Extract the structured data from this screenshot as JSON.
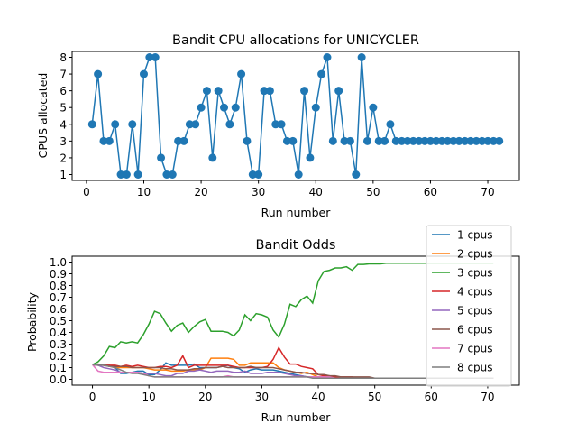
{
  "chart_data": [
    {
      "type": "line",
      "title": "Bandit CPU allocations for UNICYCLER",
      "xlabel": "Run number",
      "ylabel": "CPUS allocated",
      "xlim": [
        -2.5,
        75.5
      ],
      "ylim": [
        0.65,
        8.35
      ],
      "xticks": [
        0,
        10,
        20,
        30,
        40,
        50,
        60,
        70
      ],
      "yticks": [
        1,
        2,
        3,
        4,
        5,
        6,
        7,
        8
      ],
      "marker": "circle",
      "color": "#1f77b4",
      "x": [
        1,
        2,
        3,
        4,
        5,
        6,
        7,
        8,
        9,
        10,
        11,
        12,
        13,
        14,
        15,
        16,
        17,
        18,
        19,
        20,
        21,
        22,
        23,
        24,
        25,
        26,
        27,
        28,
        29,
        30,
        31,
        32,
        33,
        34,
        35,
        36,
        37,
        38,
        39,
        40,
        41,
        42,
        43,
        44,
        45,
        46,
        47,
        48,
        49,
        50,
        51,
        52,
        53,
        54,
        55,
        56,
        57,
        58,
        59,
        60,
        61,
        62,
        63,
        64,
        65,
        66,
        67,
        68,
        69,
        70,
        71,
        72
      ],
      "y": [
        4,
        7,
        3,
        3,
        4,
        1,
        1,
        4,
        1,
        7,
        8,
        8,
        2,
        1,
        1,
        3,
        3,
        4,
        4,
        5,
        6,
        2,
        6,
        5,
        4,
        5,
        7,
        3,
        1,
        1,
        6,
        6,
        4,
        4,
        3,
        3,
        1,
        6,
        2,
        5,
        7,
        8,
        3,
        6,
        3,
        3,
        1,
        8,
        3,
        5,
        3,
        3,
        4,
        3,
        3,
        3,
        3,
        3,
        3,
        3,
        3,
        3,
        3,
        3,
        3,
        3,
        3,
        3,
        3,
        3,
        3,
        3
      ]
    },
    {
      "type": "line",
      "title": "Bandit Odds",
      "xlabel": "Run number",
      "ylabel": "Probability",
      "xlim": [
        -3.6,
        75.6
      ],
      "ylim": [
        -0.05,
        1.05
      ],
      "xticks": [
        0,
        10,
        20,
        30,
        40,
        50,
        60,
        70
      ],
      "yticks": [
        0.0,
        0.1,
        0.2,
        0.3,
        0.4,
        0.5,
        0.6,
        0.7,
        0.8,
        0.9,
        1.0
      ],
      "ytick_labels": [
        "0.0",
        "0.1",
        "0.2",
        "0.3",
        "0.4",
        "0.5",
        "0.6",
        "0.7",
        "0.8",
        "0.9",
        "1.0"
      ],
      "legend_placement": "top-right",
      "x_start": 0,
      "x_end": 71,
      "series": [
        {
          "name": "1 cpus",
          "color": "#1f77b4",
          "values": [
            0.125,
            0.13,
            0.12,
            0.12,
            0.1,
            0.05,
            0.05,
            0.06,
            0.07,
            0.07,
            0.04,
            0.04,
            0.08,
            0.14,
            0.12,
            0.12,
            0.12,
            0.12,
            0.13,
            0.1,
            0.1,
            0.1,
            0.1,
            0.11,
            0.12,
            0.1,
            0.09,
            0.06,
            0.08,
            0.09,
            0.08,
            0.08,
            0.08,
            0.07,
            0.06,
            0.05,
            0.04,
            0.03,
            0.02,
            0.02,
            0.01,
            0.01,
            0.01,
            0.01,
            0.01,
            0.01,
            0.01,
            0.01,
            0.01,
            0.01,
            0.01,
            0.01,
            0.01,
            0.01,
            0.01,
            0.01,
            0.01,
            0.01,
            0.01,
            0.01,
            0.01,
            0.01,
            0.01,
            0.01,
            0.01,
            0.01,
            0.01,
            0.01,
            0.01,
            0.01,
            0.01,
            0.01
          ]
        },
        {
          "name": "2 cpus",
          "color": "#ff7f0e",
          "values": [
            0.125,
            0.13,
            0.12,
            0.11,
            0.1,
            0.1,
            0.1,
            0.1,
            0.1,
            0.1,
            0.09,
            0.08,
            0.08,
            0.08,
            0.07,
            0.07,
            0.07,
            0.08,
            0.08,
            0.08,
            0.1,
            0.18,
            0.18,
            0.18,
            0.18,
            0.17,
            0.12,
            0.12,
            0.14,
            0.14,
            0.14,
            0.14,
            0.14,
            0.1,
            0.08,
            0.07,
            0.06,
            0.05,
            0.06,
            0.04,
            0.02,
            0.02,
            0.02,
            0.01,
            0.01,
            0.01,
            0.01,
            0.01,
            0.01,
            0.01,
            0.01,
            0.01,
            0.01,
            0.01,
            0.01,
            0.01,
            0.01,
            0.01,
            0.01,
            0.01,
            0.01,
            0.01,
            0.01,
            0.01,
            0.01,
            0.01,
            0.01,
            0.01,
            0.01,
            0.01,
            0.01,
            0.01
          ]
        },
        {
          "name": "3 cpus",
          "color": "#2ca02c",
          "values": [
            0.125,
            0.15,
            0.2,
            0.28,
            0.27,
            0.32,
            0.31,
            0.32,
            0.31,
            0.38,
            0.47,
            0.58,
            0.56,
            0.48,
            0.41,
            0.46,
            0.48,
            0.4,
            0.45,
            0.49,
            0.51,
            0.41,
            0.41,
            0.41,
            0.4,
            0.37,
            0.42,
            0.55,
            0.5,
            0.56,
            0.55,
            0.53,
            0.42,
            0.36,
            0.47,
            0.64,
            0.62,
            0.68,
            0.71,
            0.65,
            0.84,
            0.92,
            0.93,
            0.95,
            0.95,
            0.96,
            0.93,
            0.98,
            0.98,
            0.985,
            0.985,
            0.985,
            0.99,
            0.99,
            0.99,
            0.99,
            0.99,
            0.99,
            0.99,
            0.99,
            0.99,
            0.99,
            0.99,
            0.99,
            0.99,
            0.99,
            0.99,
            0.99,
            0.99,
            0.99,
            0.99,
            0.99
          ]
        },
        {
          "name": "4 cpus",
          "color": "#d62728",
          "values": [
            0.125,
            0.12,
            0.12,
            0.12,
            0.12,
            0.11,
            0.12,
            0.11,
            0.12,
            0.11,
            0.1,
            0.1,
            0.11,
            0.11,
            0.1,
            0.12,
            0.2,
            0.1,
            0.12,
            0.12,
            0.12,
            0.12,
            0.12,
            0.12,
            0.12,
            0.11,
            0.1,
            0.1,
            0.1,
            0.1,
            0.1,
            0.11,
            0.17,
            0.27,
            0.19,
            0.13,
            0.13,
            0.11,
            0.1,
            0.09,
            0.04,
            0.03,
            0.03,
            0.02,
            0.02,
            0.02,
            0.02,
            0.01,
            0.01,
            0.01,
            0.01,
            0.01,
            0.01,
            0.01,
            0.01,
            0.01,
            0.01,
            0.01,
            0.01,
            0.01,
            0.01,
            0.01,
            0.01,
            0.01,
            0.01,
            0.01,
            0.01,
            0.01,
            0.01,
            0.01,
            0.01,
            0.01
          ]
        },
        {
          "name": "5 cpus",
          "color": "#9467bd",
          "values": [
            0.125,
            0.12,
            0.1,
            0.09,
            0.08,
            0.06,
            0.06,
            0.06,
            0.06,
            0.05,
            0.05,
            0.05,
            0.04,
            0.03,
            0.03,
            0.05,
            0.05,
            0.07,
            0.07,
            0.08,
            0.07,
            0.06,
            0.07,
            0.07,
            0.07,
            0.06,
            0.06,
            0.07,
            0.05,
            0.05,
            0.05,
            0.06,
            0.06,
            0.06,
            0.05,
            0.04,
            0.03,
            0.03,
            0.02,
            0.02,
            0.02,
            0.02,
            0.01,
            0.01,
            0.01,
            0.01,
            0.01,
            0.01,
            0.01,
            0.01,
            0.01,
            0.01,
            0.01,
            0.01,
            0.01,
            0.01,
            0.01,
            0.01,
            0.01,
            0.01,
            0.01,
            0.01,
            0.01,
            0.01,
            0.01,
            0.01,
            0.01,
            0.01,
            0.01,
            0.01,
            0.01,
            0.01
          ]
        },
        {
          "name": "6 cpus",
          "color": "#8c564b",
          "values": [
            0.125,
            0.13,
            0.12,
            0.11,
            0.11,
            0.11,
            0.11,
            0.1,
            0.1,
            0.1,
            0.1,
            0.1,
            0.1,
            0.09,
            0.09,
            0.08,
            0.08,
            0.08,
            0.09,
            0.09,
            0.1,
            0.1,
            0.1,
            0.11,
            0.1,
            0.1,
            0.1,
            0.1,
            0.11,
            0.1,
            0.1,
            0.1,
            0.1,
            0.09,
            0.08,
            0.07,
            0.06,
            0.06,
            0.05,
            0.05,
            0.04,
            0.04,
            0.03,
            0.03,
            0.02,
            0.02,
            0.02,
            0.02,
            0.02,
            0.02,
            0.01,
            0.01,
            0.01,
            0.01,
            0.01,
            0.01,
            0.01,
            0.01,
            0.01,
            0.01,
            0.01,
            0.01,
            0.01,
            0.01,
            0.01,
            0.01,
            0.01,
            0.01,
            0.01,
            0.01,
            0.01,
            0.01
          ]
        },
        {
          "name": "7 cpus",
          "color": "#e377c2",
          "values": [
            0.125,
            0.07,
            0.06,
            0.06,
            0.06,
            0.06,
            0.06,
            0.06,
            0.06,
            0.05,
            0.03,
            0.02,
            0.02,
            0.02,
            0.02,
            0.02,
            0.02,
            0.02,
            0.02,
            0.02,
            0.02,
            0.02,
            0.02,
            0.02,
            0.03,
            0.02,
            0.02,
            0.02,
            0.02,
            0.02,
            0.02,
            0.02,
            0.02,
            0.02,
            0.02,
            0.02,
            0.02,
            0.02,
            0.02,
            0.02,
            0.02,
            0.02,
            0.02,
            0.01,
            0.01,
            0.01,
            0.01,
            0.01,
            0.01,
            0.01,
            0.01,
            0.01,
            0.01,
            0.01,
            0.01,
            0.01,
            0.01,
            0.01,
            0.01,
            0.01,
            0.01,
            0.01,
            0.01,
            0.01,
            0.01,
            0.01,
            0.01,
            0.01,
            0.01,
            0.01,
            0.01,
            0.01
          ]
        },
        {
          "name": "8 cpus",
          "color": "#7f7f7f",
          "values": [
            0.125,
            0.12,
            0.12,
            0.11,
            0.1,
            0.08,
            0.06,
            0.05,
            0.05,
            0.04,
            0.03,
            0.02,
            0.02,
            0.02,
            0.02,
            0.02,
            0.02,
            0.02,
            0.02,
            0.02,
            0.02,
            0.02,
            0.02,
            0.02,
            0.02,
            0.02,
            0.02,
            0.02,
            0.02,
            0.02,
            0.02,
            0.02,
            0.02,
            0.02,
            0.02,
            0.02,
            0.02,
            0.02,
            0.02,
            0.01,
            0.01,
            0.01,
            0.01,
            0.01,
            0.01,
            0.01,
            0.01,
            0.01,
            0.01,
            0.01,
            0.01,
            0.01,
            0.01,
            0.01,
            0.01,
            0.01,
            0.01,
            0.01,
            0.01,
            0.01,
            0.01,
            0.01,
            0.01,
            0.01,
            0.01,
            0.01,
            0.01,
            0.01,
            0.01,
            0.01,
            0.01,
            0.01
          ]
        }
      ]
    }
  ]
}
